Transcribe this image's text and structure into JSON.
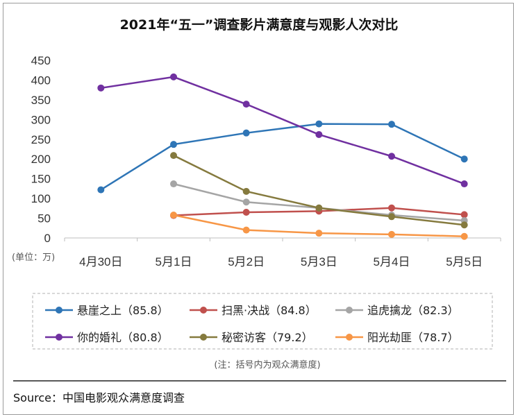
{
  "chart_data": {
    "type": "line",
    "title": "2021年“五一”调查影片满意度与观影人次对比",
    "unit_label": "(单位：万)",
    "categories": [
      "4月30日",
      "5月1日",
      "5月2日",
      "5月3日",
      "5月4日",
      "5月5日"
    ],
    "ylim": [
      0,
      450
    ],
    "yticks": [
      0,
      50,
      100,
      150,
      200,
      250,
      300,
      350,
      400,
      450
    ],
    "grid": false,
    "legend_placement": "bottom",
    "series": [
      {
        "name": "悬崖之上（85.8）",
        "color": "#2E75B6",
        "values": [
          122,
          237,
          266,
          289,
          288,
          200
        ]
      },
      {
        "name": "扫黑·决战（84.8）",
        "color": "#C0504D",
        "values": [
          null,
          57,
          65,
          68,
          76,
          59
        ]
      },
      {
        "name": "追虎擒龙（82.3）",
        "color": "#A5A5A5",
        "values": [
          null,
          137,
          91,
          76,
          58,
          44
        ]
      },
      {
        "name": "你的婚礼（80.8）",
        "color": "#7030A0",
        "values": [
          380,
          408,
          339,
          262,
          207,
          137
        ]
      },
      {
        "name": "秘密访客（79.2）",
        "color": "#857A3E",
        "values": [
          null,
          209,
          118,
          76,
          54,
          33
        ]
      },
      {
        "name": "阳光劫匪（78.7）",
        "color": "#F79646",
        "values": [
          null,
          58,
          20,
          12,
          9,
          4
        ]
      }
    ],
    "note": "(注：括号内为观众满意度)",
    "source": "Source：中国电影观众满意度调查"
  }
}
